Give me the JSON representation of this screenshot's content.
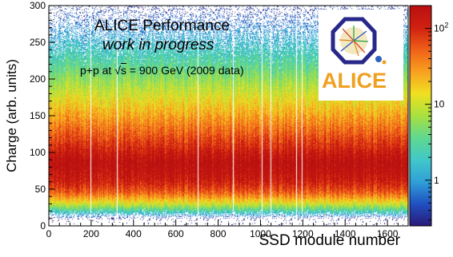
{
  "chart_data": {
    "type": "heatmap",
    "title_lines": [
      "ALICE Performance",
      "work in progress"
    ],
    "annotation": {
      "prefix": "p+p at ",
      "sqrt_symbol": "√",
      "sqrt_arg": "s",
      "suffix": " = 900 GeV (2009 data)"
    },
    "xlabel": "SSD module number",
    "ylabel": "Charge (arb. units)",
    "xlim": [
      0,
      1698
    ],
    "ylim": [
      0,
      300
    ],
    "xticks": [
      0,
      200,
      400,
      600,
      800,
      1000,
      1200,
      1400,
      1600
    ],
    "yticks": [
      0,
      50,
      100,
      150,
      200,
      250,
      300
    ],
    "z_scale": "log",
    "zticks": [
      {
        "label": "1",
        "value": 1
      },
      {
        "label": "10",
        "value": 10
      },
      {
        "label": "10",
        "exponent": "2",
        "value": 100
      }
    ],
    "zlim": [
      0.25,
      200
    ],
    "peak_charge": 85,
    "dead_modules": [
      195,
      320,
      705,
      868,
      1005,
      1048,
      1170,
      1195
    ],
    "colormap": [
      "#2a1a78",
      "#2050c0",
      "#30a0d8",
      "#40c8c8",
      "#60d890",
      "#a8e040",
      "#f0e020",
      "#f8a020",
      "#f06018",
      "#d02010",
      "#b81010"
    ]
  },
  "logo": {
    "text": "ALICE",
    "color": "#f0a020",
    "frame_color": "#28288a"
  }
}
